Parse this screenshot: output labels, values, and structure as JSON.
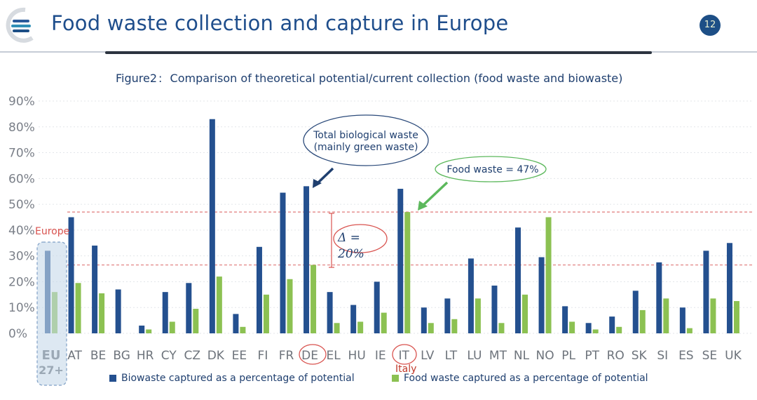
{
  "header": {
    "title": "Food waste collection and capture in Europe",
    "page_number": "12"
  },
  "figure": {
    "caption_label": "Figure2",
    "caption_separator": ":",
    "caption_text": "Comparison of theoretical potential/current collection (food waste and biowaste)"
  },
  "colors": {
    "biowaste": "#24508f",
    "food_waste": "#8cc152",
    "annotation_red": "#d9534f",
    "annotation_navy": "#2b4a7a",
    "annotation_green": "#5cb85c"
  },
  "chart_data": {
    "type": "bar",
    "categories": [
      "EU 27+",
      "AT",
      "BE",
      "BG",
      "HR",
      "CY",
      "CZ",
      "DK",
      "EE",
      "FI",
      "FR",
      "DE",
      "EL",
      "HU",
      "IE",
      "IT",
      "LV",
      "LT",
      "LU",
      "MT",
      "NL",
      "NO",
      "PL",
      "PT",
      "RO",
      "SK",
      "SI",
      "ES",
      "SE",
      "UK"
    ],
    "series": [
      {
        "name": "Biowaste captured as a percentage of potential",
        "color": "#24508f",
        "values": [
          32,
          45,
          34,
          17,
          3,
          16,
          19.5,
          83,
          7.5,
          33.5,
          54.5,
          57,
          16,
          11,
          20,
          56,
          10,
          13.5,
          29,
          18.5,
          41,
          29.5,
          10.5,
          4,
          6.5,
          16.5,
          27.5,
          10,
          32,
          35
        ]
      },
      {
        "name": "Food waste captured as a percentage of potential",
        "color": "#8cc152",
        "values": [
          16,
          19.5,
          15.5,
          0,
          1.5,
          4.5,
          9.5,
          22,
          2.5,
          15,
          21,
          26.5,
          4,
          4.5,
          8,
          47,
          4,
          5.5,
          13.5,
          4,
          15,
          45,
          4.5,
          1.5,
          2.5,
          9,
          13.5,
          2,
          13.5,
          12.5
        ]
      }
    ],
    "y_ticks": [
      "0%",
      "10%",
      "20%",
      "30%",
      "40%",
      "50%",
      "60%",
      "70%",
      "80%",
      "90%"
    ],
    "ylim": [
      0,
      90
    ],
    "grid": true,
    "reference_lines": [
      26.5,
      47
    ],
    "annotations": {
      "europe_label": "Europe",
      "italy_label": "Italy",
      "de_callout_line1": "Total biological waste",
      "de_callout_line2": "(mainly green waste)",
      "it_callout": "Food waste = 47%",
      "delta_line1": "Δ =",
      "delta_line2": "20%"
    },
    "legend_position": "bottom"
  }
}
